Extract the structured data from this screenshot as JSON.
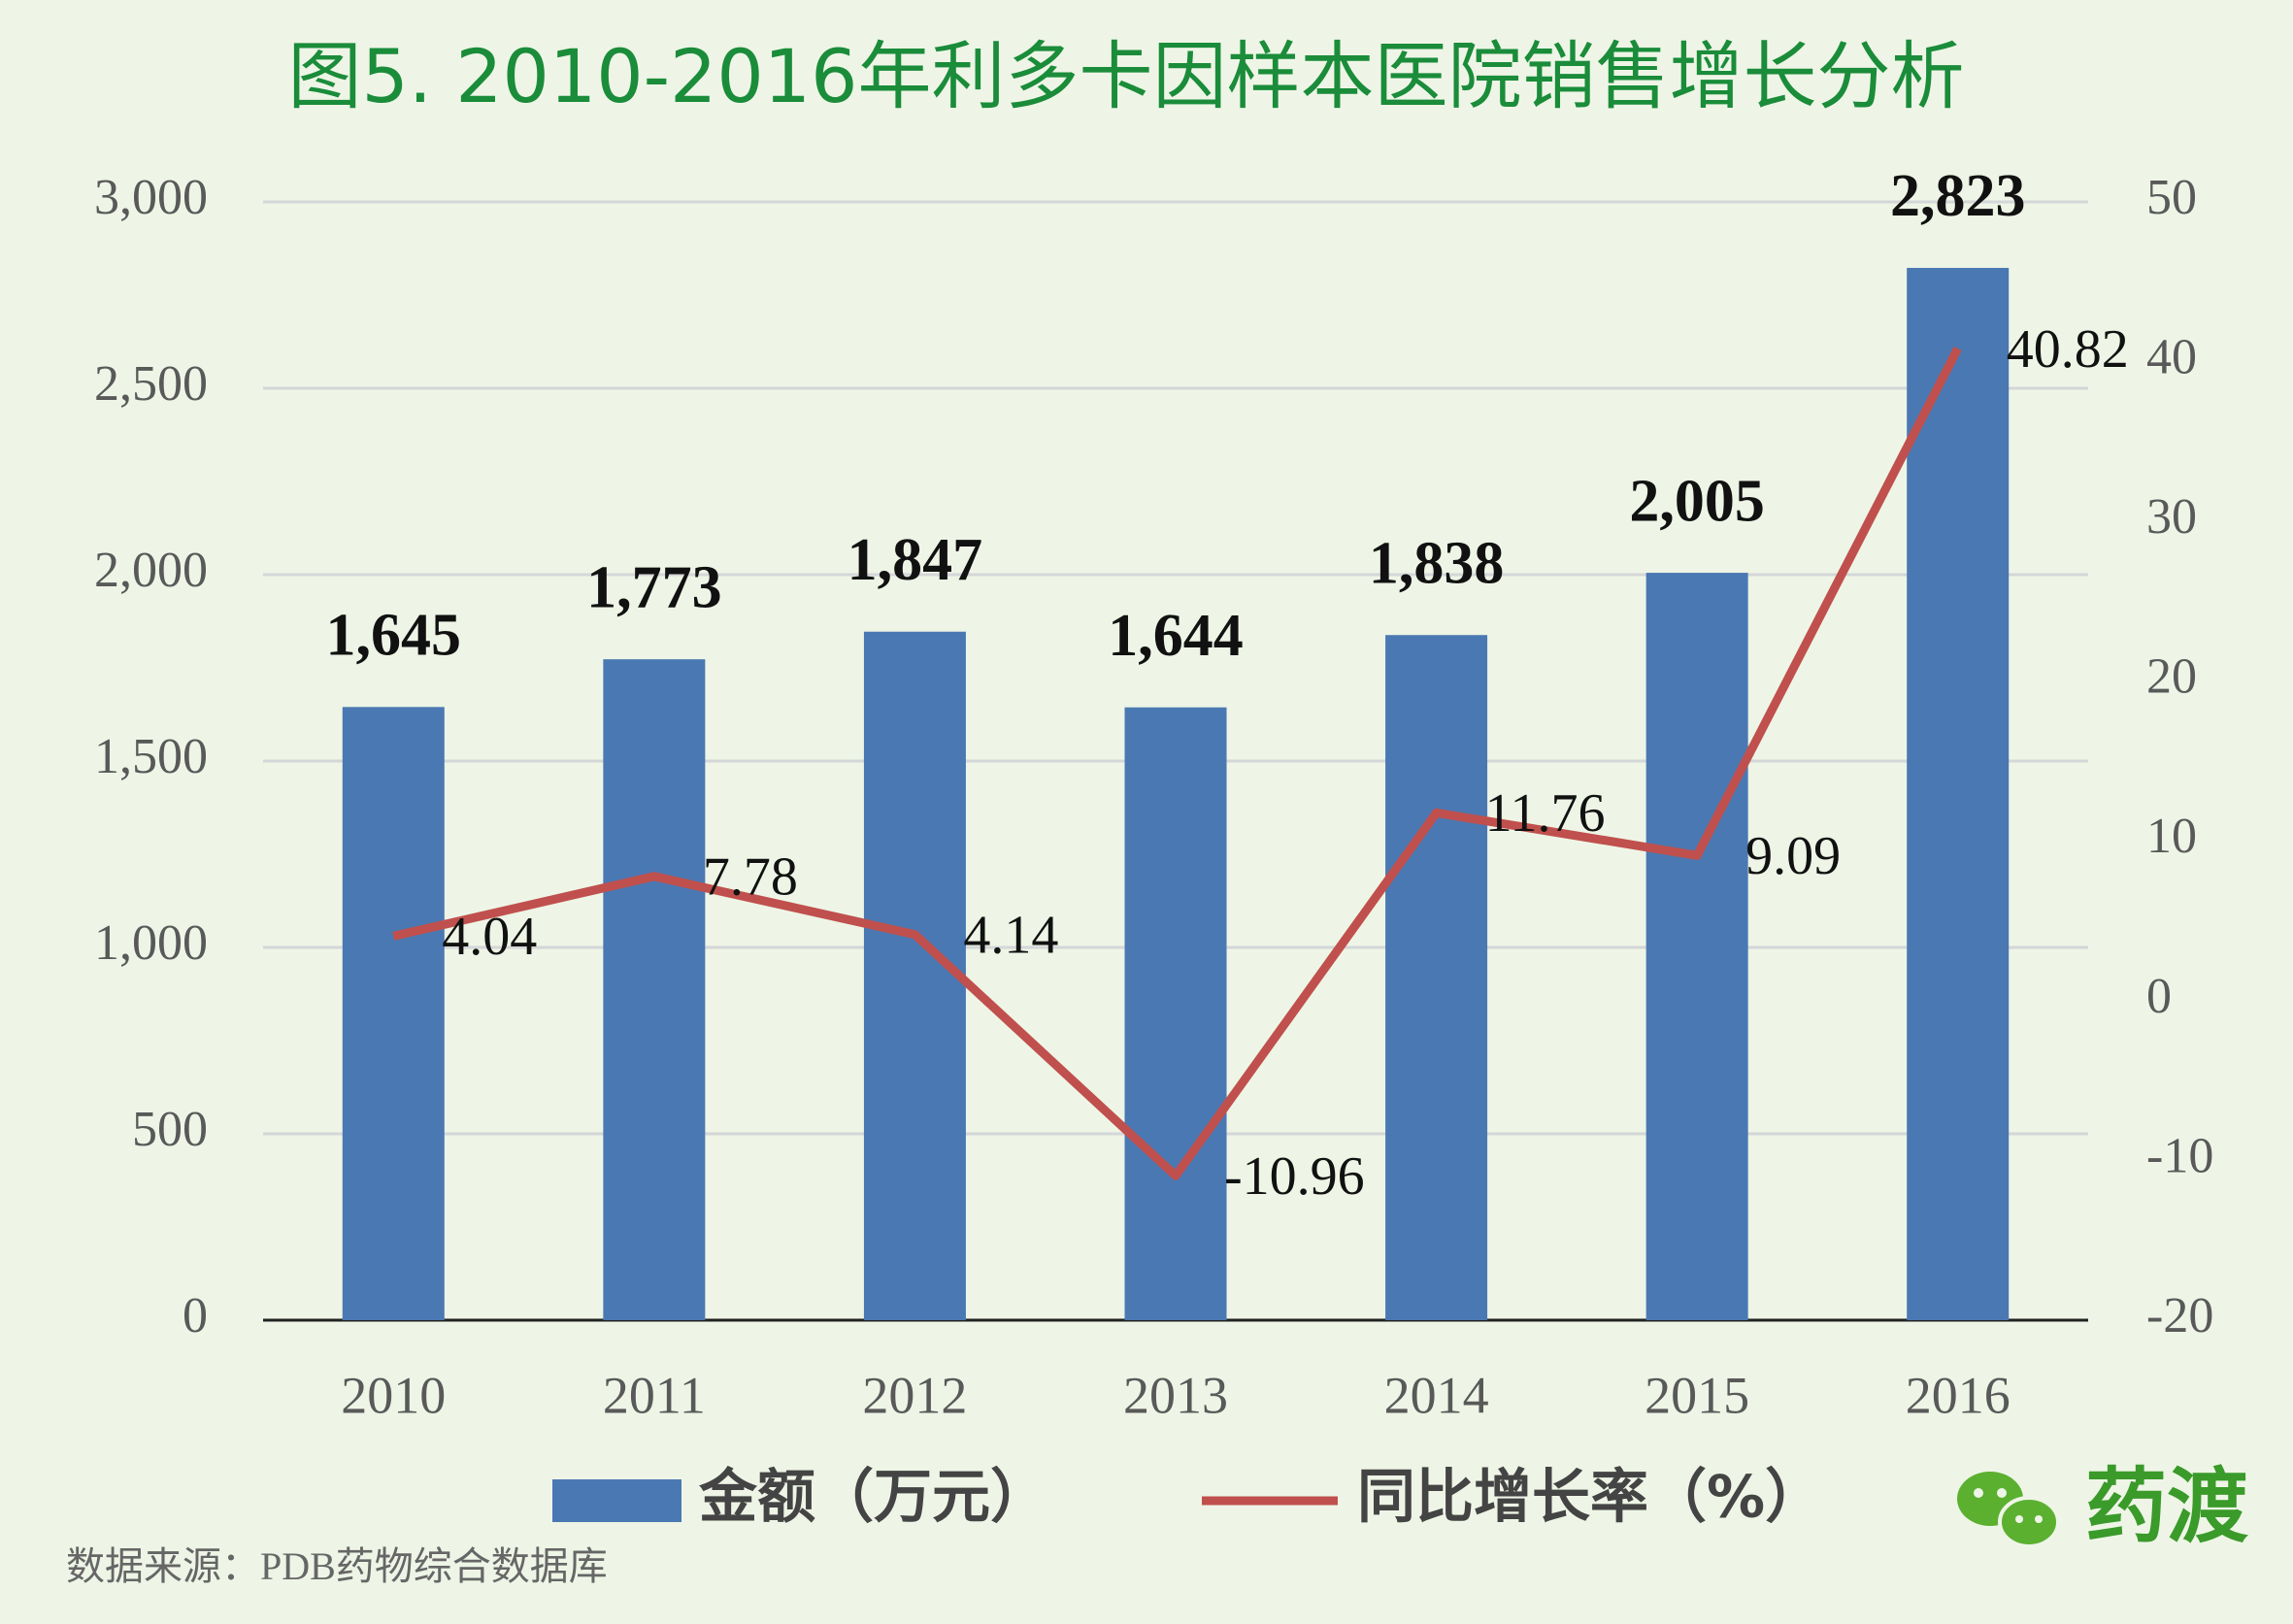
{
  "chart_data": {
    "type": "bar",
    "title": "图5. 2010-2016年利多卡因样本医院销售增长分析",
    "categories": [
      "2010",
      "2011",
      "2012",
      "2013",
      "2014",
      "2015",
      "2016"
    ],
    "series": [
      {
        "name": "金额（万元）",
        "type": "bar",
        "color": "#4a78b2",
        "values": [
          1645,
          1773,
          1847,
          1644,
          1838,
          2005,
          2823
        ],
        "value_labels": [
          "1,645",
          "1,773",
          "1,847",
          "1,644",
          "1,838",
          "2,005",
          "2,823"
        ]
      },
      {
        "name": "同比增长率（%）",
        "type": "line",
        "axis": "y2",
        "color": "#c0504d",
        "values": [
          4.04,
          7.78,
          4.14,
          -10.96,
          11.76,
          9.09,
          40.82
        ]
      }
    ],
    "ylim": [
      0,
      3000
    ],
    "yticks": [
      0,
      500,
      {
        "value": 1000,
        "label": "1,000"
      },
      {
        "value": 1500,
        "label": "1,500"
      },
      {
        "value": 2000,
        "label": "2,000"
      },
      {
        "value": 2500,
        "label": "2,500"
      },
      {
        "value": 3000,
        "label": "3,000"
      }
    ],
    "y2lim": [
      -20,
      50
    ],
    "y2ticks": [
      -20,
      -10,
      0,
      10,
      20,
      30,
      40,
      50
    ],
    "grid": true
  },
  "source": "数据来源：PDB药物综合数据库",
  "logo": "药渡"
}
